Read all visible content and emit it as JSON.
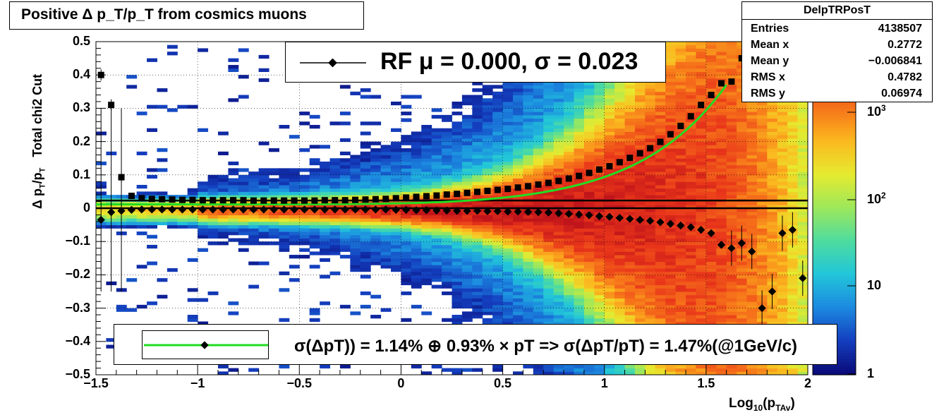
{
  "title": "Positive Δ p_T/p_T from cosmics muons",
  "stats": {
    "name": "DelpTRPosT",
    "rows": [
      {
        "key": "Entries",
        "value": "4138507"
      },
      {
        "key": "Mean x",
        "value": "0.2772"
      },
      {
        "key": "Mean y",
        "value": "−0.006841"
      },
      {
        "key": "RMS x",
        "value": "0.4782"
      },
      {
        "key": "RMS y",
        "value": "0.06974"
      }
    ]
  },
  "legend_rf": "RF μ =  0.000, σ =   0.023",
  "legend_fit": "σ(ΔpT)) =  1.14% ⊕  0.93% × pT => σ(ΔpT/pT) =  1.47%(@1GeV/c)",
  "colors": {
    "fit_curve": "#22dd22",
    "markers": "#000000",
    "palette": [
      "#0a0a78",
      "#143fbf",
      "#1c8ae0",
      "#22c6d9",
      "#4fdc9e",
      "#9ee85a",
      "#e6ea2f",
      "#fbb81f",
      "#f6721a",
      "#e9361a",
      "#c0141b"
    ]
  },
  "chart_data": {
    "type": "heatmap",
    "title": "Positive Δ p_T/p_T from cosmics muons",
    "xlabel": "Log10(pTAv)",
    "ylabel": "Δ pT/pT   Total chi2 Cut",
    "xlim": [
      -1.5,
      2
    ],
    "ylim": [
      -0.5,
      0.5
    ],
    "x_ticks": [
      "−1.5",
      "−1",
      "−0.5",
      "0",
      "0.5",
      "1",
      "1.5",
      "2"
    ],
    "y_ticks": [
      "−0.5",
      "−0.4",
      "−0.3",
      "−0.2",
      "−0.1",
      "0",
      "0.1",
      "0.2",
      "0.3",
      "0.4",
      "0.5"
    ],
    "z_scale": "log",
    "z_ticks": [
      "1",
      "10",
      "10^2",
      "10^3"
    ],
    "grid": true,
    "mean_series": {
      "x": [
        -1.475,
        -1.425,
        -1.375,
        -1.325,
        -1.275,
        -1.225,
        -1.175,
        -1.125,
        -1.075,
        -1.025,
        -0.975,
        -0.925,
        -0.875,
        -0.825,
        -0.775,
        -0.725,
        -0.675,
        -0.625,
        -0.575,
        -0.525,
        -0.475,
        -0.425,
        -0.375,
        -0.325,
        -0.275,
        -0.225,
        -0.175,
        -0.125,
        -0.075,
        -0.025,
        0.025,
        0.075,
        0.125,
        0.175,
        0.225,
        0.275,
        0.325,
        0.375,
        0.425,
        0.475,
        0.525,
        0.575,
        0.625,
        0.675,
        0.725,
        0.775,
        0.825,
        0.875,
        0.925,
        0.975,
        1.025,
        1.075,
        1.125,
        1.175,
        1.225,
        1.275,
        1.325,
        1.375,
        1.425,
        1.475,
        1.525,
        1.575,
        1.625,
        1.675,
        1.725,
        1.775,
        1.825,
        1.875,
        1.925,
        1.975
      ],
      "y": [
        -0.035,
        -0.012,
        -0.008,
        -0.005,
        -0.004,
        -0.004,
        -0.004,
        -0.004,
        -0.004,
        -0.004,
        -0.004,
        -0.004,
        -0.004,
        -0.004,
        -0.004,
        -0.004,
        -0.004,
        -0.004,
        -0.004,
        -0.004,
        -0.004,
        -0.004,
        -0.004,
        -0.004,
        -0.004,
        -0.004,
        -0.004,
        -0.004,
        -0.004,
        -0.005,
        -0.005,
        -0.006,
        -0.006,
        -0.007,
        -0.007,
        -0.008,
        -0.008,
        -0.008,
        -0.009,
        -0.009,
        -0.01,
        -0.01,
        -0.011,
        -0.012,
        -0.013,
        -0.015,
        -0.017,
        -0.019,
        -0.021,
        -0.024,
        -0.026,
        -0.029,
        -0.032,
        -0.035,
        -0.038,
        -0.042,
        -0.047,
        -0.052,
        -0.057,
        -0.065,
        -0.075,
        -0.11,
        -0.12,
        -0.105,
        -0.13,
        -0.3,
        -0.25,
        -0.075,
        -0.065,
        -0.21
      ]
    },
    "sigma_series": {
      "x": [
        -1.475,
        -1.425,
        -1.375,
        -1.325,
        -1.275,
        -1.225,
        -1.175,
        -1.125,
        -1.075,
        -1.025,
        -0.975,
        -0.925,
        -0.875,
        -0.825,
        -0.775,
        -0.725,
        -0.675,
        -0.625,
        -0.575,
        -0.525,
        -0.475,
        -0.425,
        -0.375,
        -0.325,
        -0.275,
        -0.225,
        -0.175,
        -0.125,
        -0.075,
        -0.025,
        0.025,
        0.075,
        0.125,
        0.175,
        0.225,
        0.275,
        0.325,
        0.375,
        0.425,
        0.475,
        0.525,
        0.575,
        0.625,
        0.675,
        0.725,
        0.775,
        0.825,
        0.875,
        0.925,
        0.975,
        1.025,
        1.075,
        1.125,
        1.175,
        1.225,
        1.275,
        1.325,
        1.375,
        1.425,
        1.475,
        1.525,
        1.575,
        1.625,
        1.675
      ],
      "y": [
        0.4,
        0.31,
        0.093,
        0.037,
        0.03,
        0.028,
        0.027,
        0.026,
        0.025,
        0.025,
        0.024,
        0.024,
        0.024,
        0.024,
        0.024,
        0.023,
        0.023,
        0.023,
        0.023,
        0.023,
        0.023,
        0.023,
        0.024,
        0.024,
        0.024,
        0.025,
        0.026,
        0.027,
        0.028,
        0.03,
        0.032,
        0.034,
        0.036,
        0.038,
        0.041,
        0.043,
        0.046,
        0.049,
        0.052,
        0.055,
        0.058,
        0.062,
        0.066,
        0.071,
        0.076,
        0.082,
        0.089,
        0.097,
        0.106,
        0.116,
        0.126,
        0.138,
        0.151,
        0.165,
        0.18,
        0.199,
        0.222,
        0.247,
        0.276,
        0.31,
        0.34,
        0.375,
        0.38,
        0.45
      ]
    },
    "fit_curve": {
      "function": "sqrt(0.0114^2 + (0.0093*10^x)^2)",
      "x_range": [
        -1.5,
        1.61
      ]
    },
    "reference_lines": [
      {
        "y": 0.0
      },
      {
        "y": 0.023
      }
    ]
  }
}
